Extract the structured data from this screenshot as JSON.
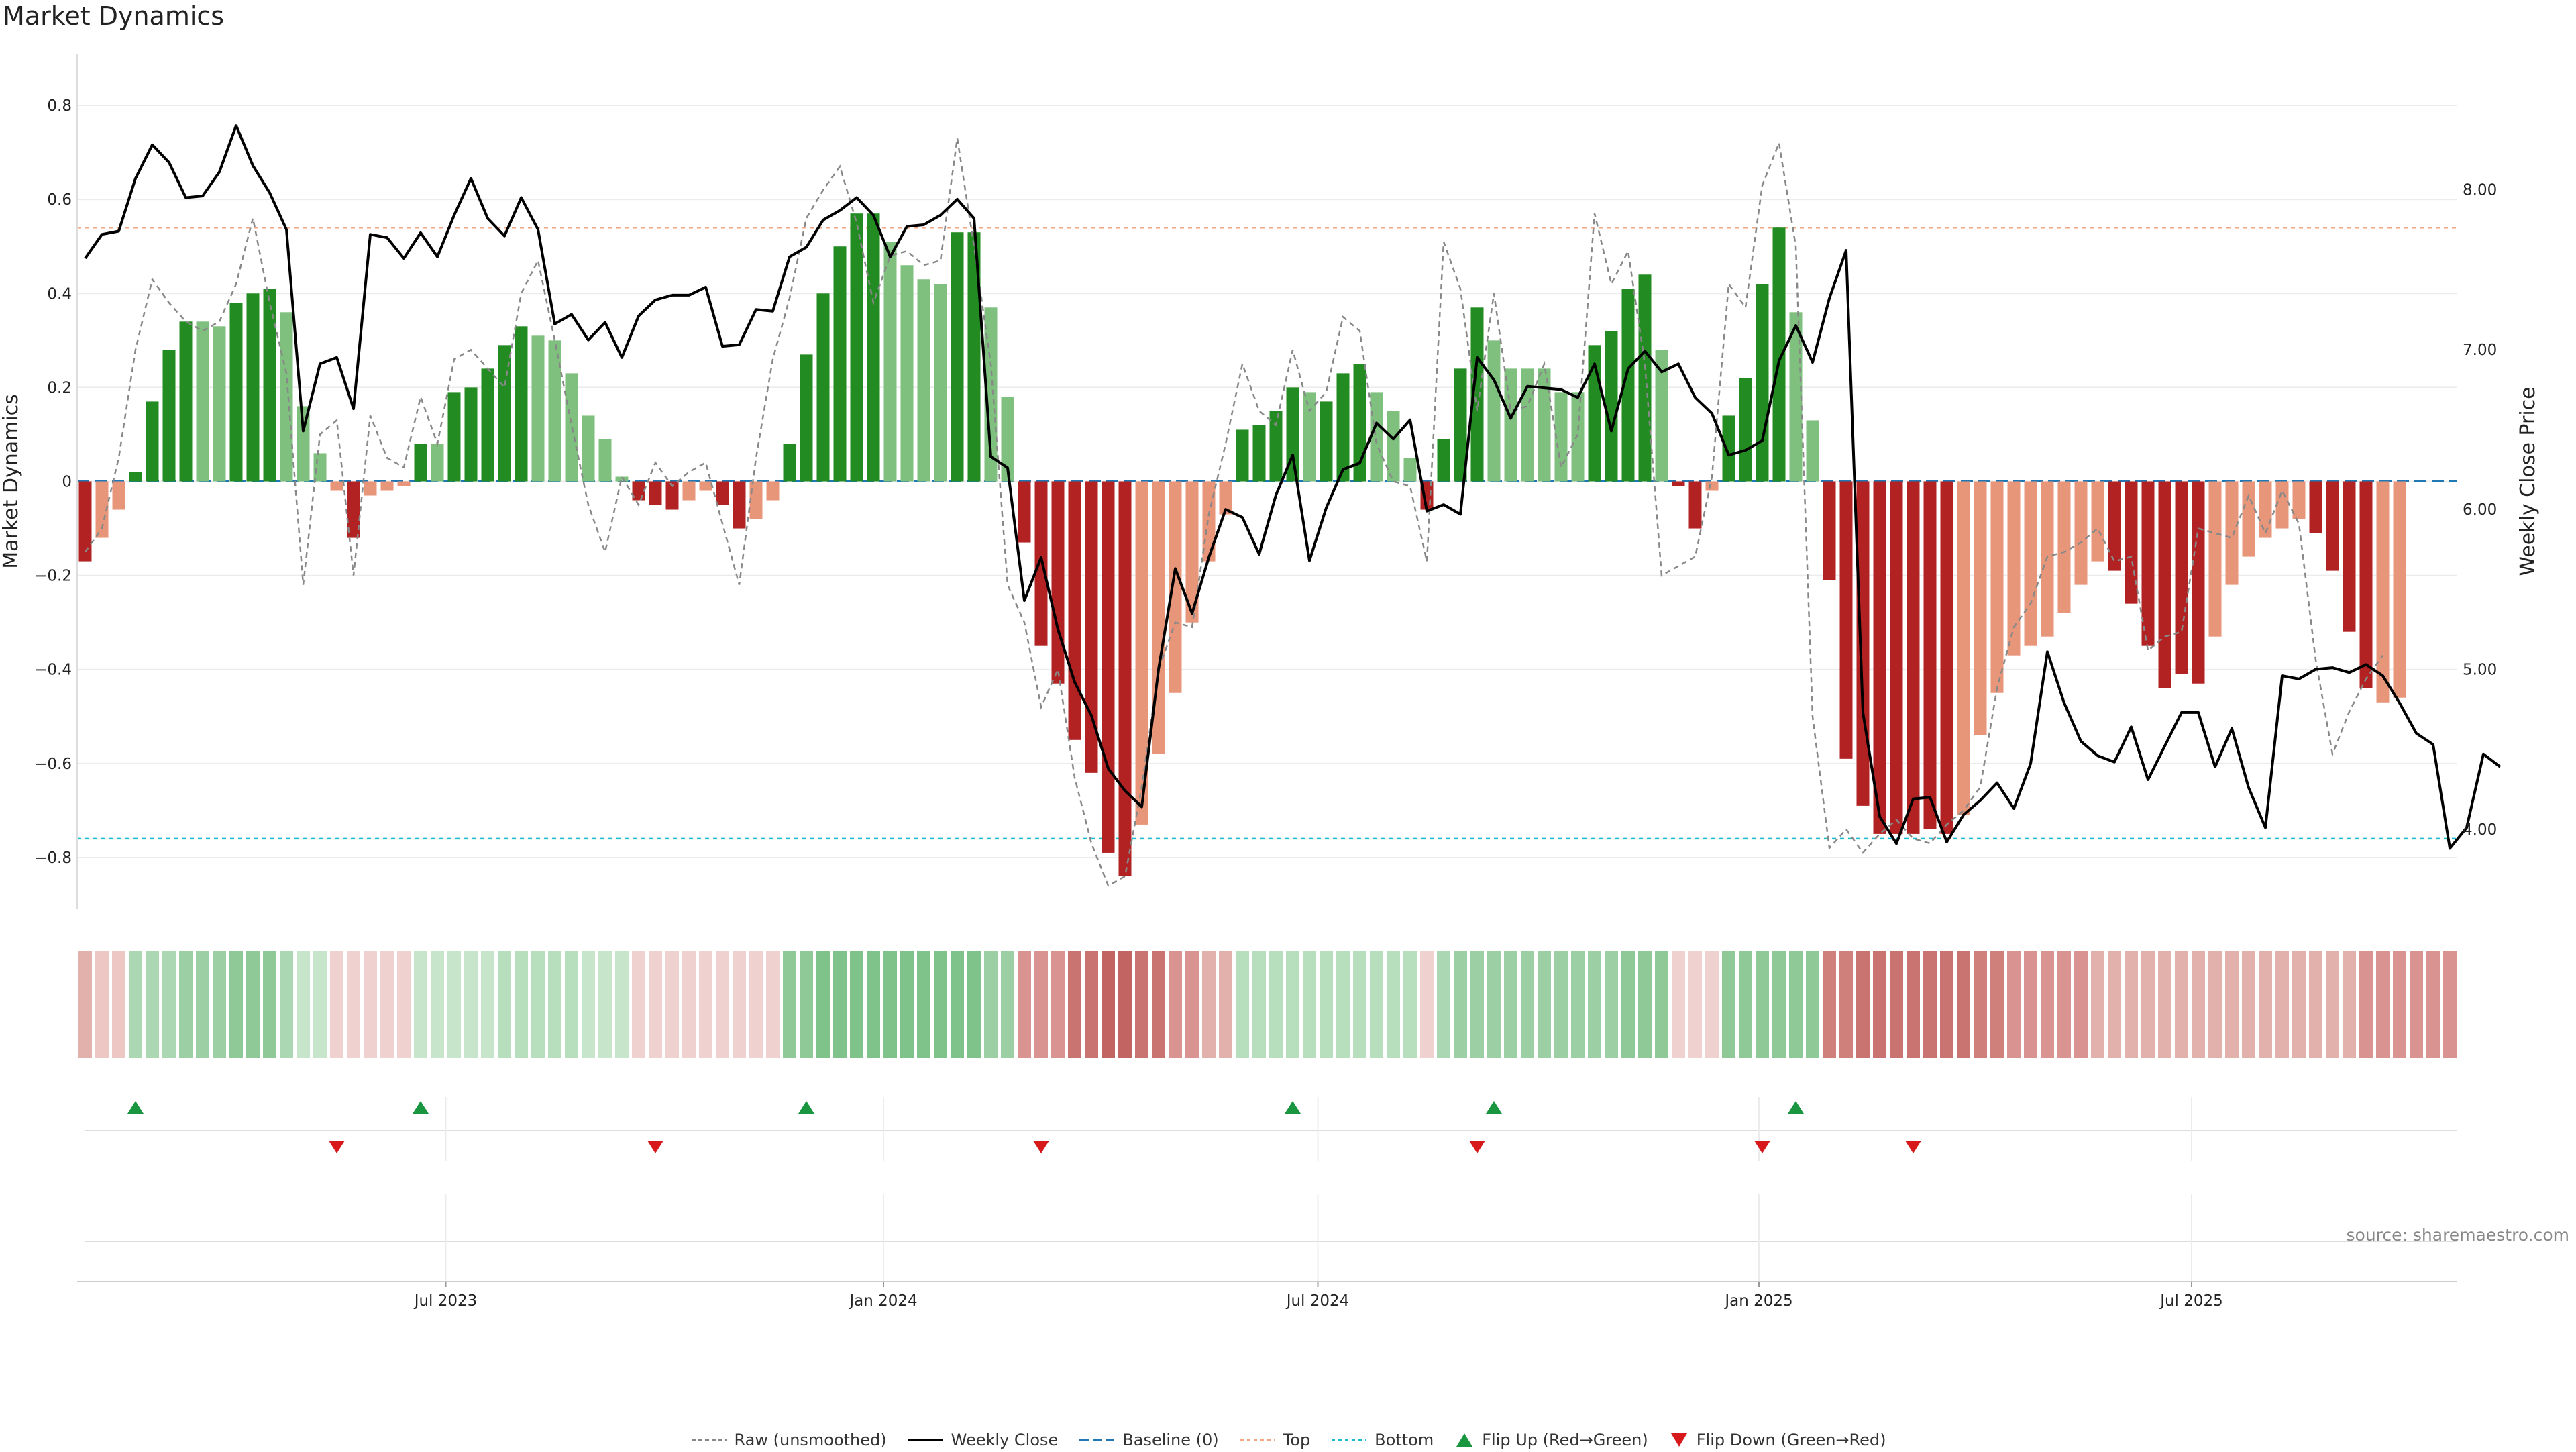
{
  "title": "Market Dynamics",
  "source": "source: sharemaestro.com",
  "colors": {
    "bull_strong": "#228b22",
    "bull_weak": "#7fc07f",
    "bear_strong": "#b22222",
    "bear_weak": "#e8967a",
    "close": "#000000",
    "raw": "#888888",
    "baseline": "#1f77b4",
    "top": "#f4a582",
    "bottom": "#17becf",
    "flip_up": "#1a9641",
    "flip_down": "#d7191c"
  },
  "legend": [
    {
      "key": "raw",
      "label": "Raw (unsmoothed)"
    },
    {
      "key": "close",
      "label": "Weekly Close"
    },
    {
      "key": "baseline",
      "label": "Baseline (0)"
    },
    {
      "key": "top",
      "label": "Top"
    },
    {
      "key": "bottom",
      "label": "Bottom"
    },
    {
      "key": "flip_up",
      "label": "Flip Up (Red→Green)"
    },
    {
      "key": "flip_down",
      "label": "Flip Down (Green→Red)"
    }
  ],
  "chart_data": {
    "type": "bar",
    "title": "Market Dynamics",
    "ylabel": "Market Dynamics",
    "y2label": "Weekly Close Price",
    "ylim": [
      -0.91,
      0.91
    ],
    "y2lim": [
      3.5,
      8.85
    ],
    "yticks": [
      -0.8,
      -0.6,
      -0.4,
      -0.2,
      0,
      0.2,
      0.4,
      0.6,
      0.8
    ],
    "ytick_labels": [
      "−0.8",
      "−0.6",
      "−0.4",
      "−0.2",
      "0",
      "0.2",
      "0.4",
      "0.6",
      "0.8"
    ],
    "y2ticks": [
      4,
      5,
      6,
      7,
      8
    ],
    "y2tick_labels": [
      "4.00",
      "5.00",
      "6.00",
      "7.00",
      "8.00"
    ],
    "top_line": 0.54,
    "bottom_line": -0.76,
    "grid": true,
    "legend_position": "bottom-center",
    "x_start_week": 0,
    "x_ticks": [
      {
        "week": 21.5,
        "label": "Jul 2023"
      },
      {
        "week": 47.6,
        "label": "Jan 2024"
      },
      {
        "week": 73.5,
        "label": "Jul 2024"
      },
      {
        "week": 99.8,
        "label": "Jan 2025"
      },
      {
        "week": 125.6,
        "label": "Jul 2025"
      }
    ],
    "bar_values": [
      -0.17,
      -0.12,
      -0.06,
      0.02,
      0.17,
      0.28,
      0.34,
      0.34,
      0.33,
      0.38,
      0.4,
      0.41,
      0.36,
      0.16,
      0.06,
      -0.02,
      -0.12,
      -0.03,
      -0.02,
      -0.01,
      0.08,
      0.08,
      0.19,
      0.2,
      0.24,
      0.29,
      0.33,
      0.31,
      0.3,
      0.23,
      0.14,
      0.09,
      0.01,
      -0.04,
      -0.05,
      -0.06,
      -0.04,
      -0.02,
      -0.05,
      -0.1,
      -0.08,
      -0.04,
      0.08,
      0.27,
      0.4,
      0.5,
      0.57,
      0.57,
      0.51,
      0.46,
      0.43,
      0.42,
      0.53,
      0.53,
      0.37,
      0.18,
      -0.13,
      -0.35,
      -0.43,
      -0.55,
      -0.62,
      -0.79,
      -0.84,
      -0.73,
      -0.58,
      -0.45,
      -0.3,
      -0.17,
      -0.07,
      0.11,
      0.12,
      0.15,
      0.2,
      0.19,
      0.17,
      0.23,
      0.25,
      0.19,
      0.15,
      0.05,
      -0.06,
      0.09,
      0.24,
      0.37,
      0.3,
      0.24,
      0.24,
      0.24,
      0.19,
      0.19,
      0.29,
      0.32,
      0.41,
      0.44,
      0.28,
      -0.01,
      -0.1,
      -0.02,
      0.14,
      0.22,
      0.42,
      0.54,
      0.36,
      0.13,
      -0.21,
      -0.59,
      -0.69,
      -0.75,
      -0.75,
      -0.75,
      -0.74,
      -0.75,
      -0.71,
      -0.54,
      -0.45,
      -0.37,
      -0.35,
      -0.33,
      -0.28,
      -0.22,
      -0.17,
      -0.19,
      -0.26,
      -0.35,
      -0.44,
      -0.41,
      -0.43,
      -0.33,
      -0.22,
      -0.16,
      -0.12,
      -0.1,
      -0.08,
      -0.11,
      -0.19,
      -0.32,
      -0.44,
      -0.47,
      -0.46
    ],
    "bar_strength": [
      "strong",
      "weak",
      "weak",
      "strong",
      "strong",
      "strong",
      "strong",
      "weak",
      "weak",
      "strong",
      "strong",
      "strong",
      "weak",
      "weak",
      "weak",
      "weak",
      "strong",
      "weak",
      "weak",
      "weak",
      "strong",
      "weak",
      "strong",
      "strong",
      "strong",
      "strong",
      "strong",
      "weak",
      "weak",
      "weak",
      "weak",
      "weak",
      "weak",
      "strong",
      "strong",
      "strong",
      "weak",
      "weak",
      "strong",
      "strong",
      "weak",
      "weak",
      "strong",
      "strong",
      "strong",
      "strong",
      "strong",
      "strong",
      "weak",
      "weak",
      "weak",
      "weak",
      "strong",
      "strong",
      "weak",
      "weak",
      "strong",
      "strong",
      "strong",
      "strong",
      "strong",
      "strong",
      "strong",
      "weak",
      "weak",
      "weak",
      "weak",
      "weak",
      "weak",
      "strong",
      "strong",
      "strong",
      "strong",
      "weak",
      "strong",
      "strong",
      "strong",
      "weak",
      "weak",
      "weak",
      "strong",
      "strong",
      "strong",
      "strong",
      "weak",
      "weak",
      "weak",
      "weak",
      "weak",
      "weak",
      "strong",
      "strong",
      "strong",
      "strong",
      "weak",
      "strong",
      "strong",
      "weak",
      "strong",
      "strong",
      "strong",
      "strong",
      "weak",
      "weak",
      "strong",
      "strong",
      "strong",
      "strong",
      "strong",
      "strong",
      "strong",
      "strong",
      "weak",
      "weak",
      "weak",
      "weak",
      "weak",
      "weak",
      "weak",
      "weak",
      "weak",
      "strong",
      "strong",
      "strong",
      "strong",
      "strong",
      "strong",
      "weak",
      "weak",
      "weak",
      "weak",
      "weak",
      "weak",
      "strong",
      "strong",
      "strong",
      "strong",
      "weak"
    ],
    "raw_values": [
      -0.15,
      -0.1,
      0.05,
      0.28,
      0.43,
      0.38,
      0.34,
      0.32,
      0.34,
      0.42,
      0.56,
      0.38,
      0.23,
      -0.22,
      0.1,
      0.13,
      -0.2,
      0.14,
      0.05,
      0.03,
      0.18,
      0.08,
      0.26,
      0.28,
      0.24,
      0.2,
      0.4,
      0.47,
      0.3,
      0.12,
      -0.05,
      -0.15,
      0.01,
      -0.05,
      0.04,
      -0.01,
      0.02,
      0.04,
      -0.09,
      -0.22,
      0.05,
      0.26,
      0.39,
      0.56,
      0.62,
      0.67,
      0.55,
      0.38,
      0.48,
      0.49,
      0.46,
      0.47,
      0.73,
      0.5,
      0.25,
      -0.22,
      -0.3,
      -0.48,
      -0.4,
      -0.63,
      -0.77,
      -0.86,
      -0.84,
      -0.65,
      -0.4,
      -0.3,
      -0.31,
      -0.07,
      0.08,
      0.25,
      0.15,
      0.12,
      0.28,
      0.15,
      0.19,
      0.35,
      0.32,
      0.08,
      0.0,
      -0.01,
      -0.17,
      0.51,
      0.41,
      0.15,
      0.4,
      0.15,
      0.16,
      0.25,
      0.03,
      0.1,
      0.57,
      0.42,
      0.49,
      0.25,
      -0.2,
      -0.18,
      -0.16,
      0.01,
      0.42,
      0.37,
      0.63,
      0.72,
      0.5,
      -0.5,
      -0.78,
      -0.74,
      -0.79,
      -0.75,
      -0.72,
      -0.76,
      -0.77,
      -0.73,
      -0.7,
      -0.65,
      -0.44,
      -0.31,
      -0.26,
      -0.16,
      -0.15,
      -0.13,
      -0.1,
      -0.17,
      -0.16,
      -0.36,
      -0.33,
      -0.32,
      -0.1,
      -0.11,
      -0.12,
      -0.03,
      -0.11,
      -0.02,
      -0.09,
      -0.38,
      -0.58,
      -0.49,
      -0.42,
      -0.37
    ],
    "close_values": [
      7.57,
      7.72,
      7.74,
      8.07,
      8.28,
      8.17,
      7.95,
      7.96,
      8.11,
      8.4,
      8.15,
      7.98,
      7.75,
      6.49,
      6.91,
      6.95,
      6.63,
      7.72,
      7.7,
      7.57,
      7.73,
      7.58,
      7.84,
      8.07,
      7.82,
      7.71,
      7.95,
      7.75,
      7.16,
      7.22,
      7.06,
      7.17,
      6.95,
      7.21,
      7.31,
      7.34,
      7.34,
      7.39,
      7.02,
      7.03,
      7.25,
      7.24,
      7.58,
      7.64,
      7.81,
      7.87,
      7.95,
      7.84,
      7.58,
      7.77,
      7.78,
      7.84,
      7.94,
      7.82,
      6.33,
      6.26,
      5.43,
      5.7,
      5.25,
      4.92,
      4.71,
      4.38,
      4.24,
      4.14,
      5.0,
      5.63,
      5.35,
      5.7,
      6.0,
      5.95,
      5.72,
      6.09,
      6.34,
      5.68,
      6.01,
      6.25,
      6.29,
      6.54,
      6.44,
      6.56,
      5.99,
      6.03,
      5.97,
      6.95,
      6.81,
      6.57,
      6.77,
      6.76,
      6.75,
      6.7,
      6.91,
      6.49,
      6.88,
      6.99,
      6.86,
      6.91,
      6.7,
      6.6,
      6.34,
      6.37,
      6.43,
      6.93,
      7.15,
      6.92,
      7.32,
      7.62,
      4.73,
      4.08,
      3.91,
      4.19,
      4.2,
      3.92,
      4.09,
      4.18,
      4.29,
      4.13,
      4.41,
      5.11,
      4.79,
      4.55,
      4.46,
      4.42,
      4.64,
      4.31,
      4.52,
      4.73,
      4.73,
      4.39,
      4.63,
      4.26,
      4.01,
      4.96,
      4.94,
      5.0,
      5.01,
      4.98,
      5.03,
      4.96,
      4.79,
      4.6,
      4.53,
      3.88,
      4.01,
      4.47,
      4.39
    ],
    "regime_colors": [
      "#e3b1ac",
      "#ecc7c3",
      "#ecc7c3",
      "#abd7b2",
      "#abd7b2",
      "#abd7b2",
      "#9ccfa3",
      "#9ccfa3",
      "#9ccfa3",
      "#8ec997",
      "#8ec997",
      "#8ec997",
      "#abd7b2",
      "#c6e5ca",
      "#c6e5ca",
      "#efd2cf",
      "#efd2cf",
      "#efd2cf",
      "#efd2cf",
      "#efd2cf",
      "#c6e5ca",
      "#c6e5ca",
      "#c6e5ca",
      "#c6e5ca",
      "#c6e5ca",
      "#b8dfbd",
      "#b8dfbd",
      "#b8dfbd",
      "#b8dfbd",
      "#b8dfbd",
      "#c6e5ca",
      "#c6e5ca",
      "#c6e5ca",
      "#efd2cf",
      "#efd2cf",
      "#efd2cf",
      "#efd2cf",
      "#efd2cf",
      "#efd2cf",
      "#efd2cf",
      "#efd2cf",
      "#efd2cf",
      "#8ec997",
      "#8ec997",
      "#7fc38a",
      "#7fc38a",
      "#7fc38a",
      "#7fc38a",
      "#7fc38a",
      "#7fc38a",
      "#7fc38a",
      "#7fc38a",
      "#7fc38a",
      "#7fc38a",
      "#9ccfa3",
      "#9ccfa3",
      "#d99491",
      "#d99491",
      "#d99491",
      "#c97471",
      "#c97471",
      "#c26462",
      "#c26462",
      "#c97471",
      "#c97471",
      "#d99491",
      "#d99491",
      "#e3b1ac",
      "#e3b1ac",
      "#b8dfbd",
      "#b8dfbd",
      "#b8dfbd",
      "#b8dfbd",
      "#b8dfbd",
      "#b8dfbd",
      "#b8dfbd",
      "#b8dfbd",
      "#b8dfbd",
      "#b8dfbd",
      "#b8dfbd",
      "#efd2cf",
      "#abd7b2",
      "#9ccfa3",
      "#9ccfa3",
      "#9ccfa3",
      "#9ccfa3",
      "#9ccfa3",
      "#9ccfa3",
      "#9ccfa3",
      "#9ccfa3",
      "#9ccfa3",
      "#9ccfa3",
      "#8ec997",
      "#8ec997",
      "#8ec997",
      "#efd2cf",
      "#efd2cf",
      "#efd2cf",
      "#8ec997",
      "#8ec997",
      "#8ec997",
      "#8ec997",
      "#8ec997",
      "#8ec997",
      "#cf807b",
      "#cf807b",
      "#c97471",
      "#c97471",
      "#c97471",
      "#c97471",
      "#c97471",
      "#c97471",
      "#c97471",
      "#cf807b",
      "#cf807b",
      "#d99491",
      "#d99491",
      "#d99491",
      "#d99491",
      "#d99491",
      "#e3b1ac",
      "#e3b1ac",
      "#e3b1ac",
      "#e3b1ac",
      "#e3b1ac",
      "#e3b1ac",
      "#e3b1ac",
      "#e3b1ac",
      "#e3b1ac",
      "#e3b1ac",
      "#e3b1ac",
      "#e3b1ac",
      "#e3b1ac",
      "#e3b1ac",
      "#e3b1ac",
      "#e3b1ac",
      "#d99491",
      "#d99491",
      "#d99491",
      "#d99491",
      "#d99491",
      "#d99491"
    ],
    "flip_up_weeks": [
      3,
      20,
      43,
      72,
      84,
      102
    ],
    "flip_down_weeks": [
      15,
      34,
      57,
      83,
      100,
      109
    ]
  }
}
